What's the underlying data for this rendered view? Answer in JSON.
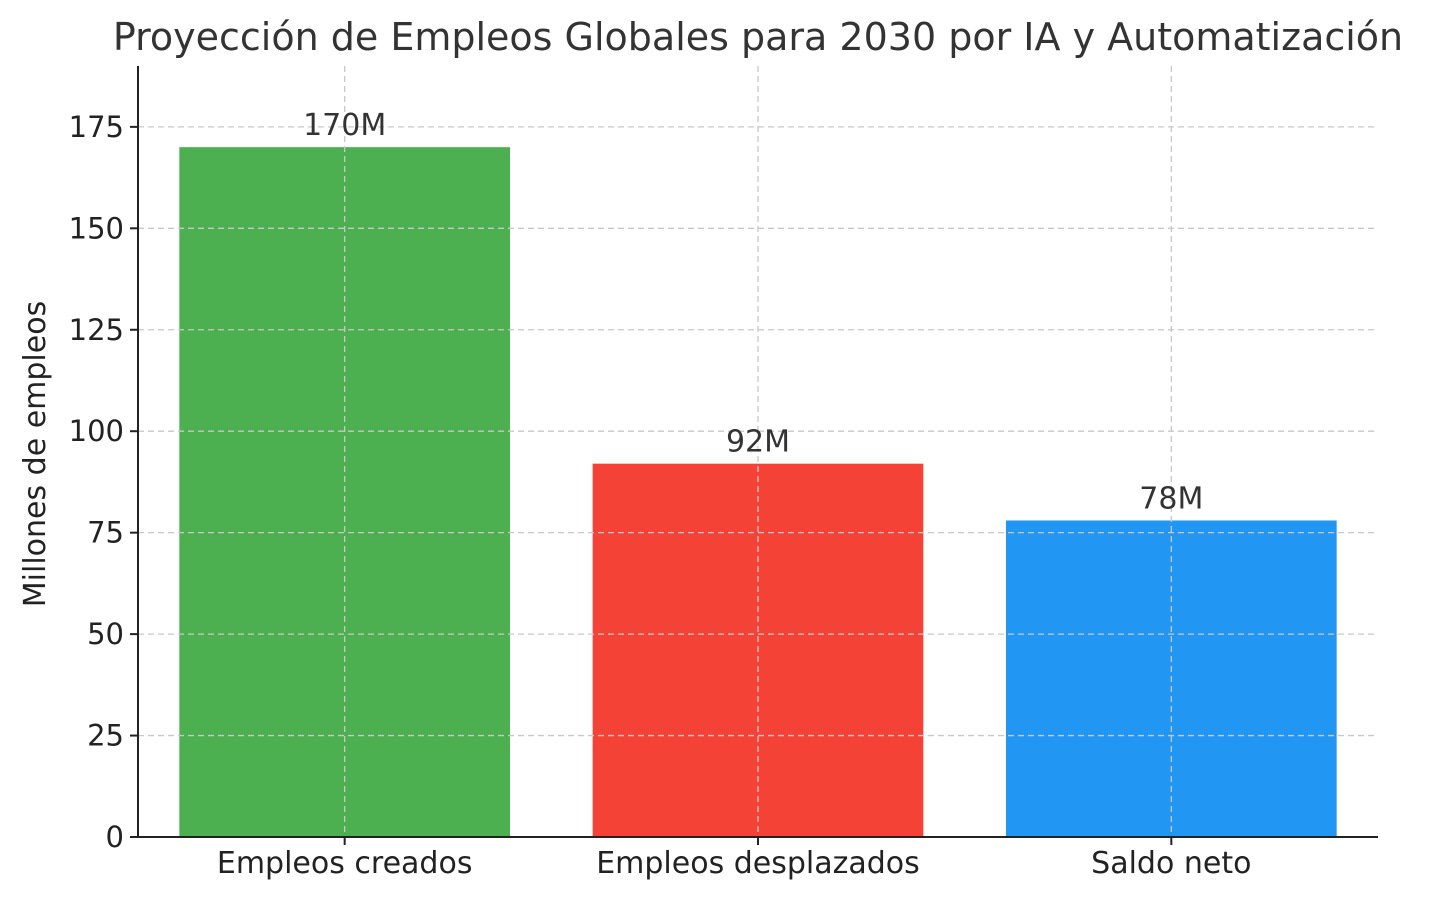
{
  "chart_data": {
    "type": "bar",
    "title": "Proyección de Empleos Globales para 2030 por IA y Automatización",
    "xlabel": "",
    "ylabel": "Millones de empleos",
    "categories": [
      "Empleos creados",
      "Empleos desplazados",
      "Saldo neto"
    ],
    "values": [
      170,
      92,
      78
    ],
    "data_labels": [
      "170M",
      "92M",
      "78M"
    ],
    "colors": [
      "#4caf50",
      "#f44336",
      "#2196f3"
    ],
    "ylim": [
      0,
      190
    ],
    "yticks": [
      0,
      25,
      50,
      75,
      100,
      125,
      150,
      175
    ],
    "grid": true
  }
}
